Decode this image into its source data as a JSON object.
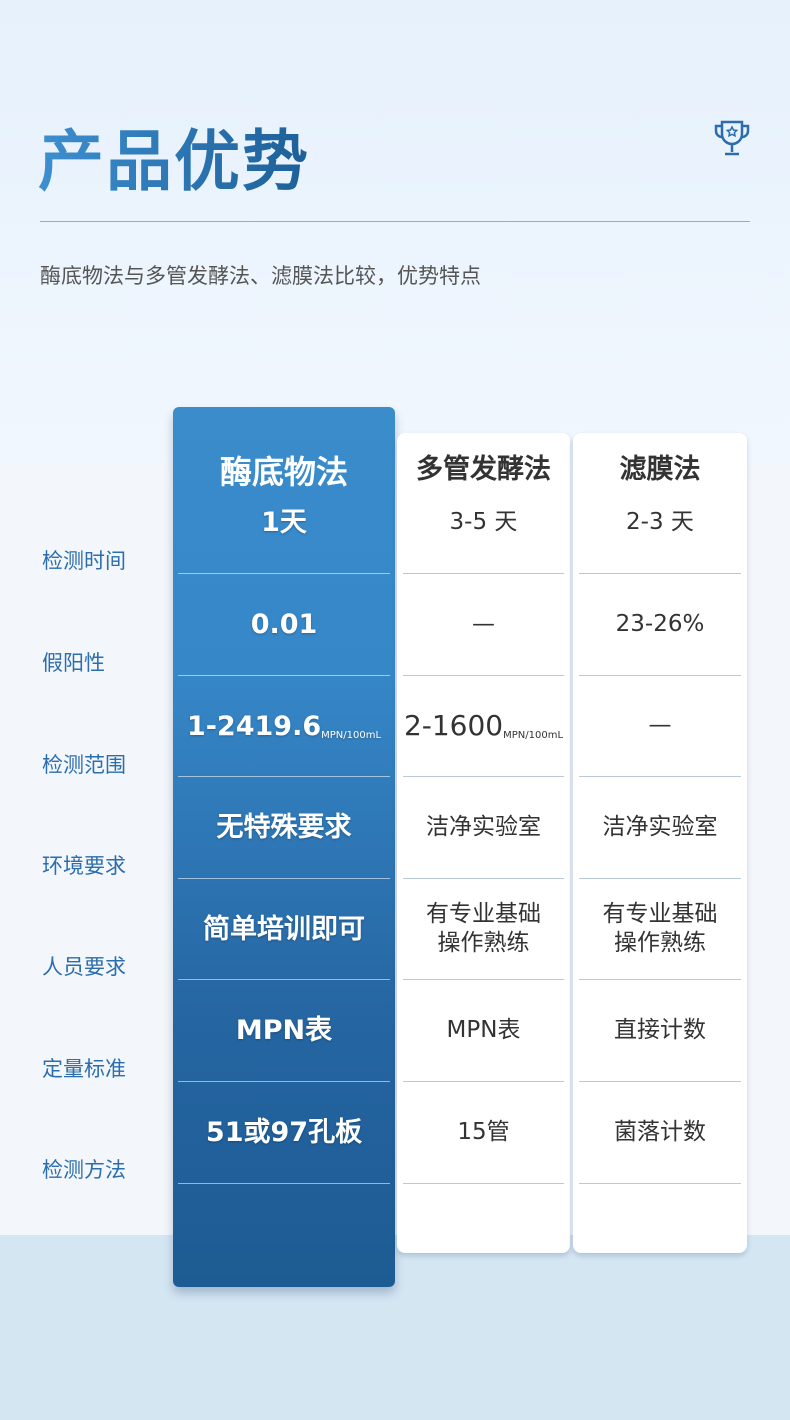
{
  "header": {
    "title": "产品优势",
    "subtitle": "酶底物法与多管发酵法、滤膜法比较，优势特点",
    "icon": "trophy-icon"
  },
  "rows": [
    "检测时间",
    "假阳性",
    "检测范围",
    "环境要求",
    "人员要求",
    "定量标准",
    "检测方法"
  ],
  "columns": [
    {
      "name": "酶底物法",
      "values": [
        "1天",
        "0.01",
        "1-2419.6",
        "无特殊要求",
        "简单培训即可",
        "MPN表",
        "51或97孔板"
      ],
      "unit": "MPN/100mL"
    },
    {
      "name": "多管发酵法",
      "values": [
        "3-5 天",
        "—",
        "2-1600",
        "洁净实验室",
        "有专业基础\n操作熟练",
        "MPN表",
        "15管"
      ],
      "unit": "MPN/100mL"
    },
    {
      "name": "滤膜法",
      "values": [
        "2-3 天",
        "23-26%",
        "—",
        "洁净实验室",
        "有专业基础\n操作熟练",
        "直接计数",
        "菌落计数"
      ]
    }
  ],
  "colors": {
    "accent": "#2c6ead",
    "highlight_column": "#3687c8"
  }
}
